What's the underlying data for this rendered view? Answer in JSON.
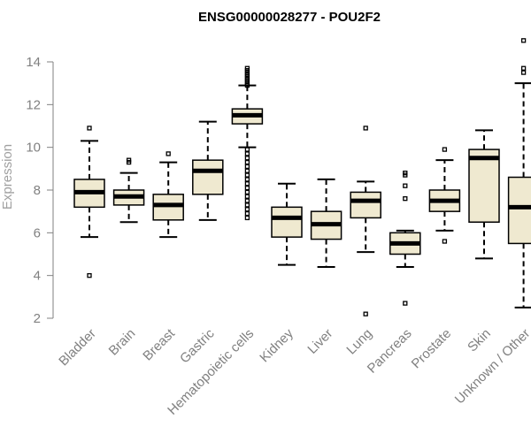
{
  "chart_data": {
    "type": "boxplot",
    "title": "ENSG00000028277 - POU2F2",
    "xlabel": "",
    "ylabel": "Expression",
    "ylim": [
      2,
      15
    ],
    "yticks": [
      2,
      4,
      6,
      8,
      10,
      12,
      14
    ],
    "box_fill": "#efe9d0",
    "median_color": "#000000",
    "categories": [
      "Bladder",
      "Brain",
      "Breast",
      "Gastric",
      "Hematopoietic cells",
      "Kidney",
      "Liver",
      "Lung",
      "Pancreas",
      "Prostate",
      "Skin",
      "Unknown / Other"
    ],
    "boxes": [
      {
        "name": "Bladder",
        "whisker_low": 5.8,
        "q1": 7.2,
        "median": 7.9,
        "q3": 8.5,
        "whisker_high": 10.3,
        "outliers": [
          10.9,
          4.0
        ]
      },
      {
        "name": "Brain",
        "whisker_low": 6.5,
        "q1": 7.3,
        "median": 7.7,
        "q3": 8.0,
        "whisker_high": 8.8,
        "outliers": [
          9.3,
          9.4
        ]
      },
      {
        "name": "Breast",
        "whisker_low": 5.8,
        "q1": 6.6,
        "median": 7.3,
        "q3": 7.8,
        "whisker_high": 9.3,
        "outliers": [
          9.7
        ]
      },
      {
        "name": "Gastric",
        "whisker_low": 6.6,
        "q1": 7.8,
        "median": 8.9,
        "q3": 9.4,
        "whisker_high": 11.2,
        "outliers": []
      },
      {
        "name": "Hematopoietic cells",
        "whisker_low": 10.0,
        "q1": 11.1,
        "median": 11.5,
        "q3": 11.8,
        "whisker_high": 12.9,
        "outliers": [
          13.7,
          13.6,
          13.5,
          13.4,
          13.3,
          13.2,
          13.1,
          13.0,
          12.9,
          9.9,
          9.7,
          9.5,
          9.3,
          9.1,
          8.9,
          8.7,
          8.5,
          8.3,
          8.1,
          7.9,
          7.7,
          7.5,
          7.3,
          7.1,
          6.9,
          6.7
        ]
      },
      {
        "name": "Kidney",
        "whisker_low": 4.5,
        "q1": 5.8,
        "median": 6.7,
        "q3": 7.2,
        "whisker_high": 8.3,
        "outliers": []
      },
      {
        "name": "Liver",
        "whisker_low": 4.4,
        "q1": 5.7,
        "median": 6.4,
        "q3": 7.0,
        "whisker_high": 8.5,
        "outliers": []
      },
      {
        "name": "Lung",
        "whisker_low": 5.1,
        "q1": 6.7,
        "median": 7.5,
        "q3": 7.9,
        "whisker_high": 8.4,
        "outliers": [
          10.9,
          2.2
        ]
      },
      {
        "name": "Pancreas",
        "whisker_low": 4.4,
        "q1": 5.0,
        "median": 5.5,
        "q3": 6.0,
        "whisker_high": 6.1,
        "outliers": [
          8.8,
          8.7,
          8.2,
          7.6,
          2.7
        ]
      },
      {
        "name": "Prostate",
        "whisker_low": 6.1,
        "q1": 7.0,
        "median": 7.5,
        "q3": 8.0,
        "whisker_high": 9.4,
        "outliers": [
          9.9,
          5.6
        ]
      },
      {
        "name": "Skin",
        "whisker_low": 4.8,
        "q1": 6.5,
        "median": 9.5,
        "q3": 9.9,
        "whisker_high": 10.8,
        "outliers": []
      },
      {
        "name": "Unknown / Other",
        "whisker_low": 2.5,
        "q1": 5.5,
        "median": 7.2,
        "q3": 8.6,
        "whisker_high": 13.0,
        "outliers": [
          15.0,
          13.7,
          13.5
        ]
      }
    ]
  }
}
